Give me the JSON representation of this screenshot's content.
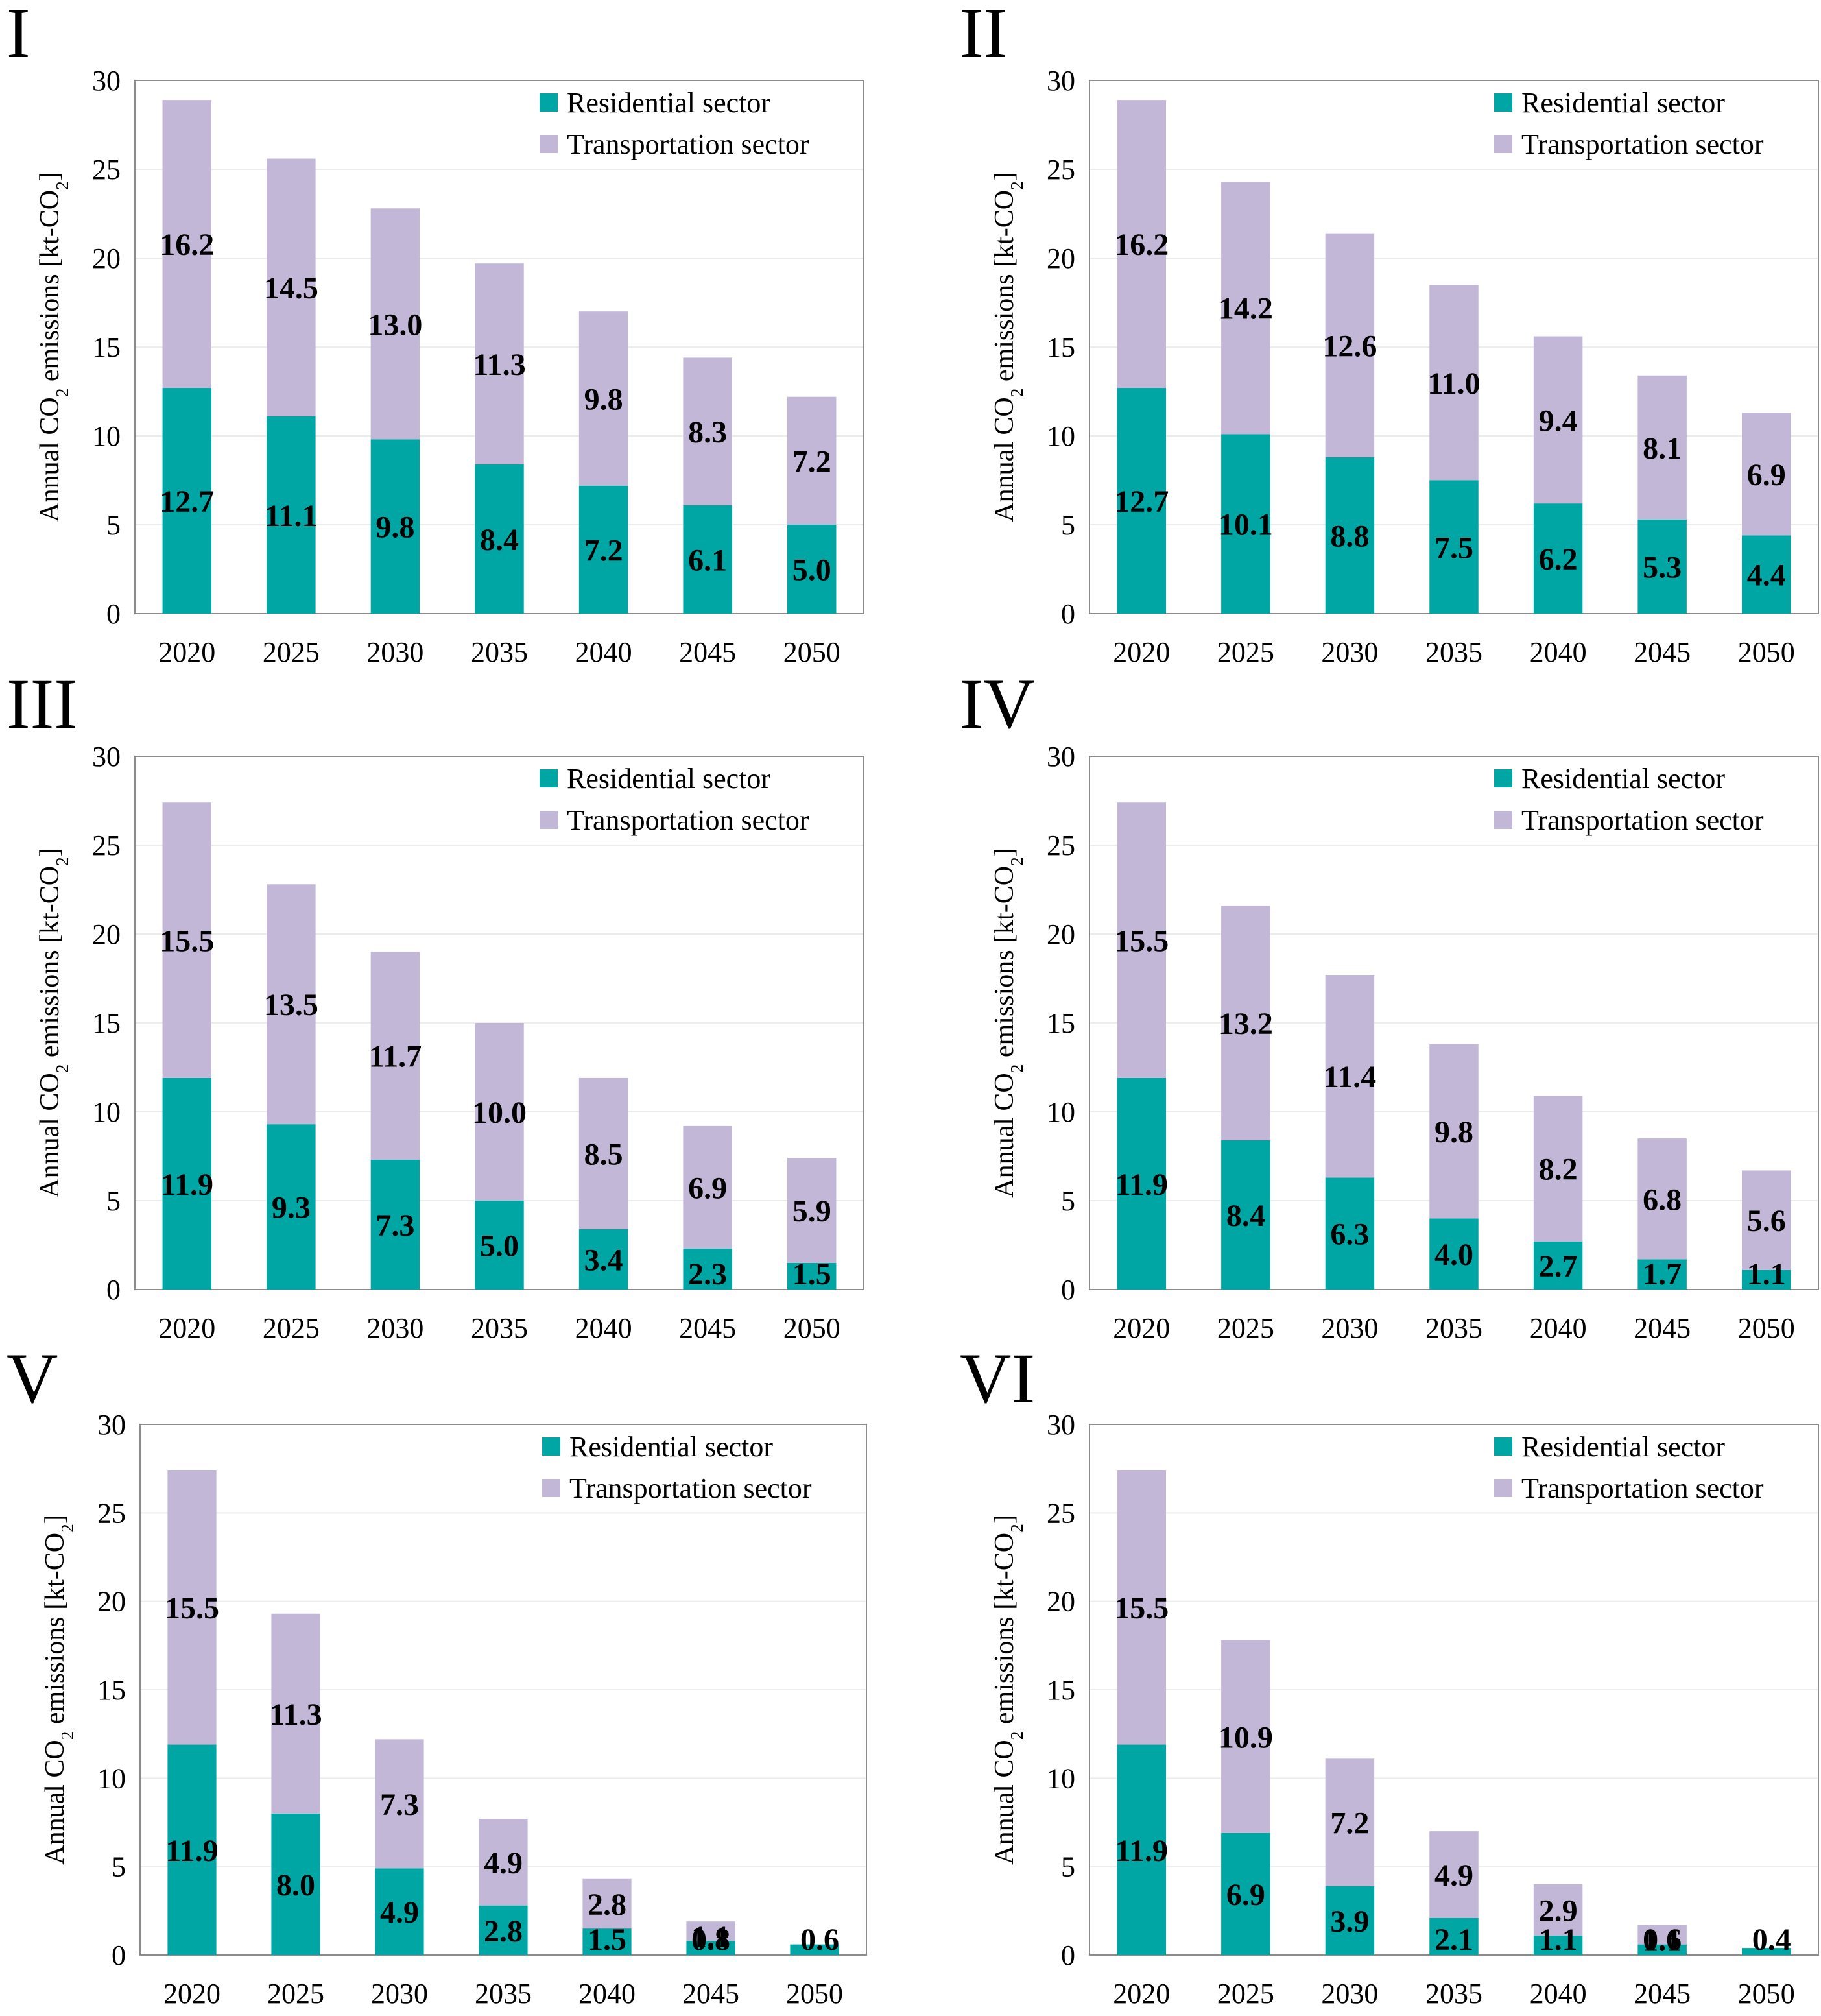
{
  "figure": {
    "colors": {
      "residential": "#00a6a3",
      "transportation": "#c3b7d7",
      "grid": "#ececec",
      "axis": "#8c8c8c",
      "text": "#000000"
    },
    "legend": {
      "residential": "Residential sector",
      "transportation": "Transportation sector"
    }
  },
  "chart_data": [
    {
      "panel": "I",
      "type": "bar",
      "stacked": true,
      "ylabel": "Annual CO2 emissions [kt-CO2]",
      "ylim": [
        0,
        30
      ],
      "yticks": [
        0,
        5,
        10,
        15,
        20,
        25,
        30
      ],
      "grid": true,
      "legend_position": "top-right",
      "categories": [
        "2020",
        "2025",
        "2030",
        "2035",
        "2040",
        "2045",
        "2050"
      ],
      "series": [
        {
          "name": "Residential sector",
          "values": [
            12.7,
            11.1,
            9.8,
            8.4,
            7.2,
            6.1,
            5.0
          ],
          "labels": [
            "12.7",
            "11.1",
            "9.8",
            "8.4",
            "7.2",
            "6.1",
            "5.0"
          ]
        },
        {
          "name": "Transportation sector",
          "values": [
            16.2,
            14.5,
            13.0,
            11.3,
            9.8,
            8.3,
            7.2
          ],
          "labels": [
            "16.2",
            "14.5",
            "13.0",
            "11.3",
            "9.8",
            "8.3",
            "7.2"
          ]
        }
      ]
    },
    {
      "panel": "II",
      "type": "bar",
      "stacked": true,
      "ylabel": "Annual CO2 emissions [kt-CO2]",
      "ylim": [
        0,
        30
      ],
      "yticks": [
        0,
        5,
        10,
        15,
        20,
        25,
        30
      ],
      "grid": true,
      "legend_position": "top-right",
      "categories": [
        "2020",
        "2025",
        "2030",
        "2035",
        "2040",
        "2045",
        "2050"
      ],
      "series": [
        {
          "name": "Residential sector",
          "values": [
            12.7,
            10.1,
            8.8,
            7.5,
            6.2,
            5.3,
            4.4
          ],
          "labels": [
            "12.7",
            "10.1",
            "8.8",
            "7.5",
            "6.2",
            "5.3",
            "4.4"
          ]
        },
        {
          "name": "Transportation sector",
          "values": [
            16.2,
            14.2,
            12.6,
            11.0,
            9.4,
            8.1,
            6.9
          ],
          "labels": [
            "16.2",
            "14.2",
            "12.6",
            "11.0",
            "9.4",
            "8.1",
            "6.9"
          ]
        }
      ]
    },
    {
      "panel": "III",
      "type": "bar",
      "stacked": true,
      "ylabel": "Annual CO2 emissions [kt-CO2]",
      "ylim": [
        0,
        30
      ],
      "yticks": [
        0,
        5,
        10,
        15,
        20,
        25,
        30
      ],
      "grid": true,
      "legend_position": "top-right",
      "categories": [
        "2020",
        "2025",
        "2030",
        "2035",
        "2040",
        "2045",
        "2050"
      ],
      "series": [
        {
          "name": "Residential sector",
          "values": [
            11.9,
            9.3,
            7.3,
            5.0,
            3.4,
            2.3,
            1.5
          ],
          "labels": [
            "11.9",
            "9.3",
            "7.3",
            "5.0",
            "3.4",
            "2.3",
            "1.5"
          ]
        },
        {
          "name": "Transportation sector",
          "values": [
            15.5,
            13.5,
            11.7,
            10.0,
            8.5,
            6.9,
            5.9
          ],
          "labels": [
            "15.5",
            "13.5",
            "11.7",
            "10.0",
            "8.5",
            "6.9",
            "5.9"
          ]
        }
      ]
    },
    {
      "panel": "IV",
      "type": "bar",
      "stacked": true,
      "ylabel": "Annual CO2 emissions [kt-CO2]",
      "ylim": [
        0,
        30
      ],
      "yticks": [
        0,
        5,
        10,
        15,
        20,
        25,
        30
      ],
      "grid": true,
      "legend_position": "top-right",
      "categories": [
        "2020",
        "2025",
        "2030",
        "2035",
        "2040",
        "2045",
        "2050"
      ],
      "series": [
        {
          "name": "Residential sector",
          "values": [
            11.9,
            8.4,
            6.3,
            4.0,
            2.7,
            1.7,
            1.1
          ],
          "labels": [
            "11.9",
            "8.4",
            "6.3",
            "4.0",
            "2.7",
            "1.7",
            "1.1"
          ]
        },
        {
          "name": "Transportation sector",
          "values": [
            15.5,
            13.2,
            11.4,
            9.8,
            8.2,
            6.8,
            5.6
          ],
          "labels": [
            "15.5",
            "13.2",
            "11.4",
            "9.8",
            "8.2",
            "6.8",
            "5.6"
          ]
        }
      ]
    },
    {
      "panel": "V",
      "type": "bar",
      "stacked": true,
      "ylabel": "Annual CO2 emissions [kt-CO2]",
      "ylim": [
        0,
        30
      ],
      "yticks": [
        0,
        5,
        10,
        15,
        20,
        25,
        30
      ],
      "grid": true,
      "legend_position": "top-right",
      "categories": [
        "2020",
        "2025",
        "2030",
        "2035",
        "2040",
        "2045",
        "2050"
      ],
      "series": [
        {
          "name": "Residential sector",
          "values": [
            11.9,
            8.0,
            4.9,
            2.8,
            1.5,
            0.8,
            0.6
          ],
          "labels": [
            "11.9",
            "8.0",
            "4.9",
            "2.8",
            "1.5",
            "0.8",
            "0.6"
          ]
        },
        {
          "name": "Transportation sector",
          "values": [
            15.5,
            11.3,
            7.3,
            4.9,
            2.8,
            1.1,
            0.0
          ],
          "labels": [
            "15.5",
            "11.3",
            "7.3",
            "4.9",
            "2.8",
            "1.1",
            ""
          ]
        }
      ]
    },
    {
      "panel": "VI",
      "type": "bar",
      "stacked": true,
      "ylabel": "Annual CO2 emissions [kt-CO2]",
      "ylim": [
        0,
        30
      ],
      "yticks": [
        0,
        5,
        10,
        15,
        20,
        25,
        30
      ],
      "grid": true,
      "legend_position": "top-right",
      "categories": [
        "2020",
        "2025",
        "2030",
        "2035",
        "2040",
        "2045",
        "2050"
      ],
      "series": [
        {
          "name": "Residential sector",
          "values": [
            11.9,
            6.9,
            3.9,
            2.1,
            1.1,
            0.6,
            0.4
          ],
          "labels": [
            "11.9",
            "6.9",
            "3.9",
            "2.1",
            "1.1",
            "0.6",
            "0.4"
          ]
        },
        {
          "name": "Transportation sector",
          "values": [
            15.5,
            10.9,
            7.2,
            4.9,
            2.9,
            1.1,
            0.0
          ],
          "labels": [
            "15.5",
            "10.9",
            "7.2",
            "4.9",
            "2.9",
            "1.1",
            ""
          ]
        }
      ]
    }
  ]
}
